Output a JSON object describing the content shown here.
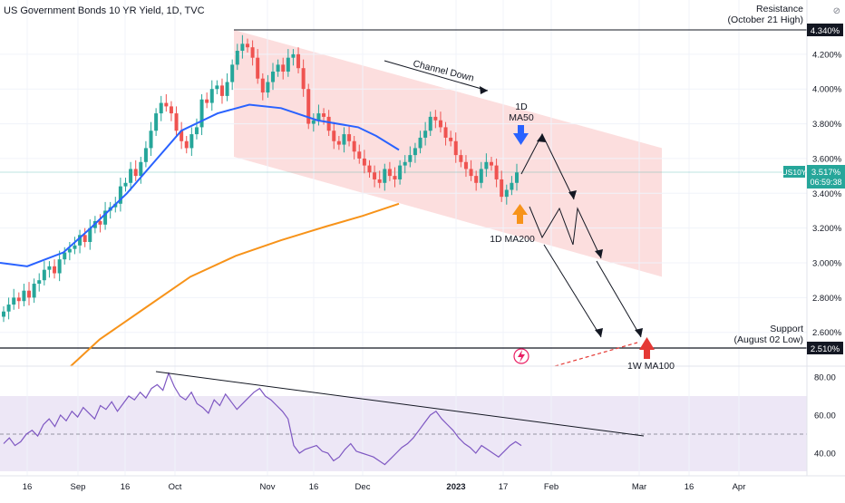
{
  "header": {
    "title": "US Government Bonds 10 YR Yield, 1D, TVC"
  },
  "annotations": {
    "resistance_line1": "Resistance",
    "resistance_line2": "(October 21 High)",
    "support_line1": "Support",
    "support_line2": "(August 02 Low)",
    "channel_down": "Channel Down",
    "ma50_line1": "1D",
    "ma50_line2": "MA50",
    "ma200": "1D MA200",
    "ma100w": "1W MA100"
  },
  "price_tags": {
    "resistance": "4.340%",
    "support": "2.510%",
    "symbol": "US10Y",
    "last": "3.517%",
    "countdown": "06:59:38"
  },
  "colors": {
    "up": "#26a69a",
    "down": "#ef5350",
    "ma50": "#2962ff",
    "ma200": "#f7931a",
    "channel_fill": "#fbd3d3",
    "rsi_band": "#ede7f6",
    "rsi_line": "#7e57c2",
    "arrow_blue": "#2962ff",
    "arrow_orange": "#f7931a",
    "arrow_red": "#e53935",
    "tag_dark": "#131722",
    "tag_teal": "#26a69a"
  },
  "chart_data": [
    {
      "type": "candlestick",
      "title": "US Government Bonds 10 YR Yield, 1D, TVC",
      "y_unit": "%",
      "y_ticks": [
        "4.200%",
        "4.000%",
        "3.800%",
        "3.600%",
        "3.400%",
        "3.200%",
        "3.000%",
        "2.800%",
        "2.600%"
      ],
      "x_ticks": [
        "16",
        "Sep",
        "16",
        "Oct",
        "Nov",
        "16",
        "Dec",
        "2023",
        "17",
        "Feb",
        "Mar",
        "16",
        "Apr"
      ],
      "ylim": [
        2.44,
        4.44
      ],
      "closes": [
        2.72,
        2.76,
        2.8,
        2.78,
        2.84,
        2.8,
        2.88,
        2.9,
        2.96,
        2.98,
        2.94,
        3.02,
        3.06,
        3.08,
        3.1,
        3.16,
        3.12,
        3.2,
        3.24,
        3.22,
        3.3,
        3.32,
        3.34,
        3.44,
        3.46,
        3.54,
        3.5,
        3.58,
        3.66,
        3.76,
        3.86,
        3.92,
        3.9,
        3.86,
        3.76,
        3.7,
        3.66,
        3.74,
        3.78,
        3.94,
        3.92,
        4.0,
        4.02,
        3.96,
        4.04,
        4.14,
        4.22,
        4.26,
        4.24,
        4.18,
        4.06,
        3.98,
        4.04,
        4.1,
        4.14,
        4.1,
        4.18,
        4.2,
        4.12,
        4.0,
        3.8,
        3.82,
        3.86,
        3.84,
        3.76,
        3.7,
        3.68,
        3.74,
        3.7,
        3.64,
        3.6,
        3.56,
        3.52,
        3.48,
        3.46,
        3.54,
        3.5,
        3.48,
        3.56,
        3.58,
        3.62,
        3.66,
        3.72,
        3.76,
        3.84,
        3.82,
        3.78,
        3.72,
        3.7,
        3.62,
        3.58,
        3.54,
        3.5,
        3.46,
        3.54,
        3.58,
        3.56,
        3.48,
        3.38,
        3.42,
        3.46,
        3.52
      ],
      "ma50": [
        [
          0,
          3.0
        ],
        [
          30,
          2.98
        ],
        [
          70,
          3.06
        ],
        [
          100,
          3.2
        ],
        [
          140,
          3.4
        ],
        [
          170,
          3.58
        ],
        [
          200,
          3.76
        ],
        [
          240,
          3.86
        ],
        [
          275,
          3.91
        ],
        [
          310,
          3.89
        ],
        [
          350,
          3.82
        ],
        [
          395,
          3.78
        ],
        [
          415,
          3.73
        ],
        [
          440,
          3.65
        ]
      ],
      "ma200": [
        [
          60,
          2.44
        ],
        [
          110,
          2.56
        ],
        [
          160,
          2.74
        ],
        [
          210,
          2.92
        ],
        [
          260,
          3.04
        ],
        [
          310,
          3.13
        ],
        [
          360,
          3.21
        ],
        [
          400,
          3.27
        ],
        [
          440,
          3.34
        ]
      ],
      "channel": [
        [
          4.34,
          3.66
        ],
        [
          3.61,
          2.92
        ]
      ],
      "resistance": 4.34,
      "support": 2.51,
      "last": 3.517
    },
    {
      "type": "line",
      "name": "RSI",
      "y_ticks": [
        "80.00",
        "60.00",
        "40.00"
      ],
      "ylim": [
        30,
        90
      ],
      "band": [
        30,
        70
      ],
      "values": [
        45,
        48,
        44,
        46,
        50,
        52,
        49,
        55,
        58,
        54,
        60,
        57,
        62,
        59,
        64,
        61,
        58,
        65,
        63,
        67,
        62,
        66,
        70,
        68,
        72,
        69,
        74,
        76,
        73,
        82,
        75,
        70,
        68,
        72,
        66,
        64,
        61,
        68,
        65,
        71,
        67,
        63,
        66,
        69,
        72,
        74,
        70,
        68,
        65,
        62,
        58,
        44,
        40,
        42,
        43,
        44,
        41,
        40,
        36,
        38,
        42,
        45,
        41,
        40,
        39,
        38,
        36,
        34,
        37,
        40,
        43,
        45,
        48,
        52,
        56,
        60,
        62,
        58,
        55,
        52,
        48,
        45,
        43,
        40,
        44,
        42,
        40,
        38,
        41,
        44,
        46,
        44
      ]
    }
  ]
}
